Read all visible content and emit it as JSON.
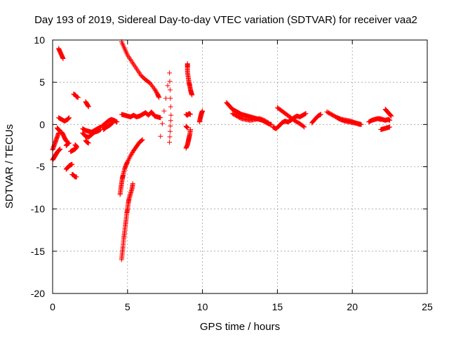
{
  "chart_data": {
    "type": "scatter",
    "title": "Day 193 of 2019, Sidereal Day-to-day VTEC variation (SDTVAR) for receiver vaa2",
    "xlabel": "GPS time / hours",
    "ylabel": "SDTVAR / TECUs",
    "xlim": [
      0,
      25
    ],
    "ylim": [
      -20,
      10
    ],
    "xticks": [
      0,
      5,
      10,
      15,
      20,
      25
    ],
    "yticks": [
      -20,
      -15,
      -10,
      -5,
      0,
      5,
      10
    ],
    "grid": true,
    "marker": "+",
    "marker_color": "#ff0000",
    "segments": [
      {
        "name": "early-cluster-a",
        "x": [
          0.0,
          0.1,
          0.2,
          0.3,
          0.4
        ],
        "y": [
          -3.0,
          -2.5,
          -2.0,
          -1.5,
          -1.0
        ]
      },
      {
        "name": "early-cluster-b",
        "x": [
          0.0,
          0.1,
          0.2,
          0.3,
          0.4,
          0.5
        ],
        "y": [
          -4.2,
          -3.9,
          -3.6,
          -3.3,
          -3.1,
          -2.9
        ]
      },
      {
        "name": "early-cluster-c",
        "x": [
          0.4,
          0.5,
          0.6,
          0.7
        ],
        "y": [
          9.0,
          8.6,
          8.2,
          7.8
        ]
      },
      {
        "name": "early-cluster-d",
        "x": [
          0.4,
          0.6,
          0.8,
          1.0,
          1.1
        ],
        "y": [
          0.8,
          0.6,
          0.4,
          0.6,
          0.8
        ]
      },
      {
        "name": "early-cluster-e",
        "x": [
          0.3,
          0.4,
          0.5
        ],
        "y": [
          -0.4,
          -0.6,
          -0.8
        ]
      },
      {
        "name": "early-cluster-f",
        "x": [
          0.6,
          0.7,
          0.8,
          0.9,
          1.0
        ],
        "y": [
          -0.9,
          -1.2,
          -1.6,
          -1.9,
          -2.1
        ]
      },
      {
        "name": "early-cluster-g",
        "x": [
          0.9,
          1.0,
          1.1,
          1.2,
          1.3
        ],
        "y": [
          -5.3,
          -5.1,
          -4.9,
          -4.8,
          -4.7
        ]
      },
      {
        "name": "early-cluster-h",
        "x": [
          0.9,
          1.0,
          1.1
        ],
        "y": [
          -2.5,
          -2.3,
          -2.2
        ]
      },
      {
        "name": "early-cluster-i",
        "x": [
          1.2,
          1.3,
          1.4,
          1.5,
          1.6
        ],
        "y": [
          -3.2,
          -3.1,
          -3.0,
          -2.9,
          -2.7
        ]
      },
      {
        "name": "early-cluster-j",
        "x": [
          1.3,
          1.4,
          1.5,
          1.6
        ],
        "y": [
          -5.9,
          -6.0,
          -6.2,
          -6.2
        ]
      },
      {
        "name": "early-cluster-k",
        "x": [
          1.4,
          1.5,
          1.6,
          1.7
        ],
        "y": [
          3.6,
          3.5,
          3.3,
          3.2
        ]
      },
      {
        "name": "early-cluster-l",
        "x": [
          1.5,
          1.6
        ],
        "y": [
          -2.4,
          -2.6
        ]
      },
      {
        "name": "early-cluster-m",
        "x": [
          2.0,
          2.2,
          2.4,
          2.6,
          2.8,
          3.0,
          3.2
        ],
        "y": [
          -0.5,
          -0.7,
          -0.8,
          -0.9,
          -0.7,
          -0.5,
          -0.3
        ]
      },
      {
        "name": "early-cluster-n",
        "x": [
          2.0,
          2.2,
          2.4,
          2.6,
          2.8,
          3.0,
          3.2
        ],
        "y": [
          -1.0,
          -1.4,
          -1.5,
          -1.2,
          -0.9,
          -0.8,
          -0.6
        ]
      },
      {
        "name": "early-cluster-o",
        "x": [
          2.2,
          2.3,
          2.4
        ],
        "y": [
          2.7,
          2.4,
          2.1
        ]
      },
      {
        "name": "early-cluster-p",
        "x": [
          2.2,
          2.3,
          2.4
        ],
        "y": [
          -1.9,
          -2.1,
          -2.2
        ]
      },
      {
        "name": "early-cluster-q",
        "x": [
          3.3,
          3.5,
          3.7,
          3.9,
          4.1,
          4.3
        ],
        "y": [
          -0.2,
          0.1,
          0.4,
          0.6,
          0.5,
          0.3
        ]
      },
      {
        "name": "early-cluster-r",
        "x": [
          3.4,
          3.6,
          3.8,
          4.0
        ],
        "y": [
          -0.6,
          -0.3,
          -0.1,
          0.2
        ]
      },
      {
        "name": "arc-descending",
        "x": [
          4.6,
          4.8,
          5.0,
          5.3,
          5.6,
          5.9,
          6.2,
          6.5,
          6.8,
          7.0,
          7.1
        ],
        "y": [
          9.8,
          9.0,
          8.2,
          7.4,
          6.6,
          5.8,
          5.3,
          4.9,
          4.2,
          3.6,
          3.2
        ]
      },
      {
        "name": "arc-plunge",
        "x": [
          4.5,
          4.55,
          4.6,
          4.65,
          4.7,
          4.8,
          4.9,
          5.0,
          5.2,
          5.4,
          5.6,
          5.8,
          6.0
        ],
        "y": [
          -8.3,
          -7.6,
          -7.0,
          -6.4,
          -6.0,
          -5.3,
          -4.8,
          -4.4,
          -3.7,
          -3.1,
          -2.6,
          -2.1,
          -1.8
        ]
      },
      {
        "name": "arc-spike",
        "x": [
          4.6,
          4.65,
          4.7,
          4.75,
          4.8,
          4.85,
          4.9,
          4.95,
          5.0,
          5.05,
          5.1,
          5.2,
          5.3,
          5.35
        ],
        "y": [
          -16.0,
          -15.2,
          -14.4,
          -13.5,
          -12.8,
          -12.0,
          -11.3,
          -10.5,
          -10.0,
          -9.3,
          -8.8,
          -8.2,
          -7.6,
          -7.0
        ]
      },
      {
        "name": "midday-band",
        "x": [
          4.6,
          4.8,
          5.0,
          5.2,
          5.4,
          5.6,
          5.8,
          6.0,
          6.2,
          6.4,
          6.6,
          6.8,
          7.0,
          7.2
        ],
        "y": [
          1.2,
          1.1,
          1.0,
          0.9,
          1.1,
          0.9,
          1.0,
          1.2,
          1.4,
          1.1,
          1.5,
          1.0,
          0.9,
          0.8
        ]
      },
      {
        "name": "outlier-isolated",
        "x": [
          7.2,
          7.8,
          7.9,
          7.8
        ],
        "y": [
          -1.4,
          6.1,
          1.1,
          -2.1
        ]
      },
      {
        "name": "vertical-9h-upper",
        "x": [
          9.0,
          9.0,
          9.0,
          9.05,
          9.1,
          9.15,
          9.2,
          9.25,
          9.3
        ],
        "y": [
          7.2,
          6.8,
          6.2,
          5.6,
          5.0,
          4.6,
          4.1,
          3.8,
          3.5
        ]
      },
      {
        "name": "vertical-9h-mid",
        "x": [
          8.9,
          9.0,
          9.1,
          9.2
        ],
        "y": [
          1.2,
          1.1,
          1.3,
          1.2
        ]
      },
      {
        "name": "vertical-9h-low",
        "x": [
          8.9,
          9.0,
          9.05,
          9.1,
          9.15,
          9.2
        ],
        "y": [
          -2.8,
          -2.4,
          -2.0,
          -1.6,
          -1.2,
          -0.6
        ]
      },
      {
        "name": "vertical-9h-aux",
        "x": [
          8.9,
          9.0
        ],
        "y": [
          -0.2,
          -0.4
        ]
      },
      {
        "name": "vertical-10h",
        "x": [
          9.8,
          9.85,
          9.9,
          9.95,
          10.0
        ],
        "y": [
          0.3,
          0.7,
          1.1,
          1.4,
          1.6
        ]
      },
      {
        "name": "afternoon-band-1",
        "x": [
          11.6,
          11.8,
          12.0,
          12.2,
          12.4,
          12.6,
          12.8,
          13.0,
          13.2,
          13.4,
          13.6,
          13.8,
          14.0,
          14.2,
          14.4,
          14.6
        ],
        "y": [
          2.6,
          2.2,
          1.8,
          1.6,
          1.4,
          1.2,
          1.1,
          1.0,
          0.9,
          0.8,
          0.7,
          0.6,
          0.5,
          0.3,
          0.1,
          0.0
        ]
      },
      {
        "name": "afternoon-band-2",
        "x": [
          12.0,
          12.3,
          12.6,
          12.9,
          13.2,
          13.5,
          13.8,
          14.1,
          14.4
        ],
        "y": [
          1.3,
          1.0,
          0.7,
          0.6,
          0.5,
          0.6,
          0.7,
          0.5,
          0.2
        ]
      },
      {
        "name": "afternoon-band-3",
        "x": [
          14.7,
          14.9,
          15.1,
          15.3,
          15.5,
          15.7,
          15.9,
          16.1,
          16.3,
          16.5,
          16.7,
          16.9
        ],
        "y": [
          -0.3,
          -0.5,
          -0.2,
          0.2,
          0.4,
          0.3,
          0.5,
          0.8,
          1.0,
          0.9,
          1.1,
          1.3
        ]
      },
      {
        "name": "afternoon-band-4",
        "x": [
          15.0,
          15.3,
          15.6,
          15.9,
          16.2,
          16.5,
          16.8
        ],
        "y": [
          2.0,
          1.6,
          1.2,
          0.8,
          0.4,
          0.1,
          -0.3
        ]
      },
      {
        "name": "evening-band-1",
        "x": [
          17.3,
          17.5,
          17.7,
          17.9
        ],
        "y": [
          0.2,
          0.6,
          1.0,
          1.2
        ]
      },
      {
        "name": "evening-band-2",
        "x": [
          18.3,
          18.6,
          18.9,
          19.2,
          19.5,
          19.8,
          20.1,
          20.4,
          20.6
        ],
        "y": [
          1.5,
          1.2,
          0.9,
          0.6,
          0.4,
          0.3,
          0.2,
          0.1,
          0.0
        ]
      },
      {
        "name": "evening-band-3",
        "x": [
          19.0,
          19.3,
          19.6,
          19.9,
          20.2,
          20.5
        ],
        "y": [
          0.8,
          0.6,
          0.5,
          0.4,
          0.2,
          0.0
        ]
      },
      {
        "name": "late-band-1",
        "x": [
          21.1,
          21.3,
          21.5,
          21.7,
          21.9
        ],
        "y": [
          0.3,
          0.5,
          0.6,
          0.7,
          0.6
        ]
      },
      {
        "name": "late-band-2",
        "x": [
          21.8,
          22.0,
          22.2,
          22.4,
          22.5
        ],
        "y": [
          0.7,
          0.6,
          0.5,
          0.6,
          0.5
        ]
      },
      {
        "name": "late-band-3",
        "x": [
          22.2,
          22.3,
          22.4,
          22.5,
          22.6
        ],
        "y": [
          1.8,
          1.6,
          1.4,
          1.2,
          1.0
        ]
      },
      {
        "name": "late-band-4",
        "x": [
          21.9,
          22.1,
          22.3,
          22.5
        ],
        "y": [
          -0.6,
          -0.5,
          -0.4,
          -0.3
        ]
      }
    ]
  }
}
